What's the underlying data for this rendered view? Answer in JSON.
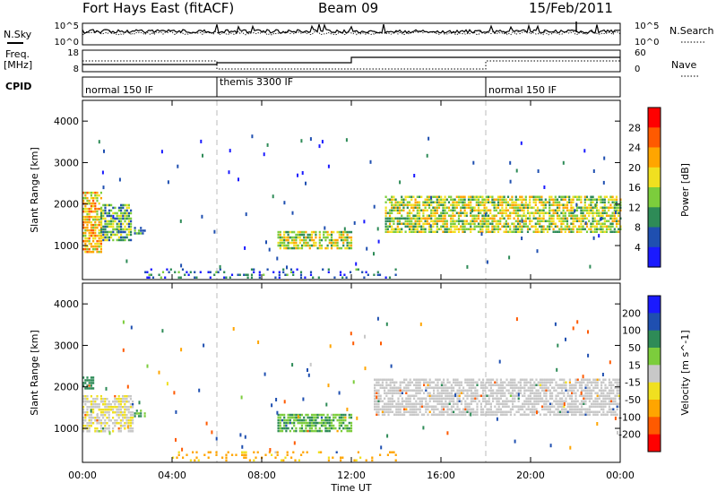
{
  "header": {
    "station": "Fort Hays East (fitACF)",
    "beam": "Beam 09",
    "date": "15/Feb/2011"
  },
  "top_panels": {
    "nsky_label": "N.Sky",
    "nsearch_label": "N.Search",
    "nsky_ticks": [
      "10^5",
      "10^0"
    ],
    "nsearch_ticks": [
      "10^5",
      "10^0"
    ],
    "freq_label_line1": "Freq.",
    "freq_label_line2": "[MHz]",
    "freq_ticks": [
      "18",
      "8"
    ],
    "nave_label": "Nave",
    "nave_ticks": [
      "60",
      "0"
    ],
    "cpid_label": "CPID",
    "cpid_segments": [
      {
        "name": "normal 150 IF",
        "start_h": 0,
        "end_h": 6
      },
      {
        "name": "themis 3300 IF",
        "start_h": 6,
        "end_h": 18
      },
      {
        "name": "normal 150 IF",
        "start_h": 18,
        "end_h": 24
      }
    ]
  },
  "chart_data": [
    {
      "type": "heatmap",
      "title": "",
      "quantity": "Power",
      "xlabel": "Time UT",
      "ylabel": "Slant Range [km]",
      "xlim_hours": [
        0,
        24
      ],
      "ylim_km": [
        180,
        4500
      ],
      "x_tick_labels": [
        "00:00",
        "04:00",
        "08:00",
        "12:00",
        "16:00",
        "20:00",
        "00:00"
      ],
      "x_tick_hours": [
        0,
        4,
        8,
        12,
        16,
        20,
        24
      ],
      "y_tick_labels": [
        "1000",
        "2000",
        "3000",
        "4000"
      ],
      "y_tick_values": [
        1000,
        2000,
        3000,
        4000
      ],
      "colorbar": {
        "label": "Power [dB]",
        "tick_labels": [
          "4",
          "8",
          "12",
          "16",
          "20",
          "24",
          "28"
        ],
        "tick_values": [
          4,
          8,
          12,
          16,
          20,
          24,
          28
        ],
        "range": [
          0,
          32
        ],
        "colors": [
          "#1a1aff",
          "#1f4fb0",
          "#2e8b57",
          "#7ccd3c",
          "#f0e020",
          "#ffa500",
          "#ff5a00",
          "#ff0000"
        ]
      },
      "echo_regions": [
        {
          "t0": 0.0,
          "t1": 0.8,
          "r0": 850,
          "r1": 2300,
          "level": 20
        },
        {
          "t0": 0.8,
          "t1": 2.2,
          "r0": 1100,
          "r1": 2000,
          "level": 12
        },
        {
          "t0": 2.3,
          "t1": 2.8,
          "r0": 1300,
          "r1": 1450,
          "level": 8
        },
        {
          "t0": 8.7,
          "t1": 12.0,
          "r0": 950,
          "r1": 1350,
          "level": 16
        },
        {
          "t0": 13.5,
          "t1": 24.0,
          "r0": 1300,
          "r1": 2200,
          "level": 16
        },
        {
          "t0": 2.5,
          "t1": 14.0,
          "r0": 200,
          "r1": 450,
          "level": 6
        }
      ]
    },
    {
      "type": "heatmap",
      "title": "",
      "quantity": "Velocity",
      "xlabel": "Time UT",
      "ylabel": "Slant Range [km]",
      "xlim_hours": [
        0,
        24
      ],
      "ylim_km": [
        180,
        4500
      ],
      "x_tick_labels": [
        "00:00",
        "04:00",
        "08:00",
        "12:00",
        "16:00",
        "20:00",
        "00:00"
      ],
      "x_tick_hours": [
        0,
        4,
        8,
        12,
        16,
        20,
        24
      ],
      "y_tick_labels": [
        "1000",
        "2000",
        "3000",
        "4000"
      ],
      "y_tick_values": [
        1000,
        2000,
        3000,
        4000
      ],
      "colorbar": {
        "label": "Velocity [m s^-1]",
        "tick_labels": [
          "200",
          "100",
          "50",
          "15",
          "-15",
          "-50",
          "-100",
          "-200"
        ],
        "tick_values": [
          200,
          100,
          50,
          15,
          -15,
          -50,
          -100,
          -200
        ],
        "colors": [
          "#1a1aff",
          "#1f4fb0",
          "#2e8b57",
          "#7ccd3c",
          "#c8c8c8",
          "#f0e020",
          "#ffa500",
          "#ff5a00",
          "#ff0000"
        ]
      },
      "echo_regions": [
        {
          "t0": 0.0,
          "t1": 2.2,
          "r0": 900,
          "r1": 1800,
          "level": -10
        },
        {
          "t0": 0.0,
          "t1": 0.5,
          "r0": 1950,
          "r1": 2250,
          "level": 50
        },
        {
          "t0": 2.3,
          "t1": 2.8,
          "r0": 1300,
          "r1": 1450,
          "level": 30
        },
        {
          "t0": 8.7,
          "t1": 12.0,
          "r0": 950,
          "r1": 1350,
          "level": 30
        },
        {
          "t0": 13.0,
          "t1": 24.0,
          "r0": 1350,
          "r1": 2200,
          "level": 0
        },
        {
          "t0": 4.0,
          "t1": 14.0,
          "r0": 200,
          "r1": 450,
          "level": -40
        }
      ]
    }
  ]
}
